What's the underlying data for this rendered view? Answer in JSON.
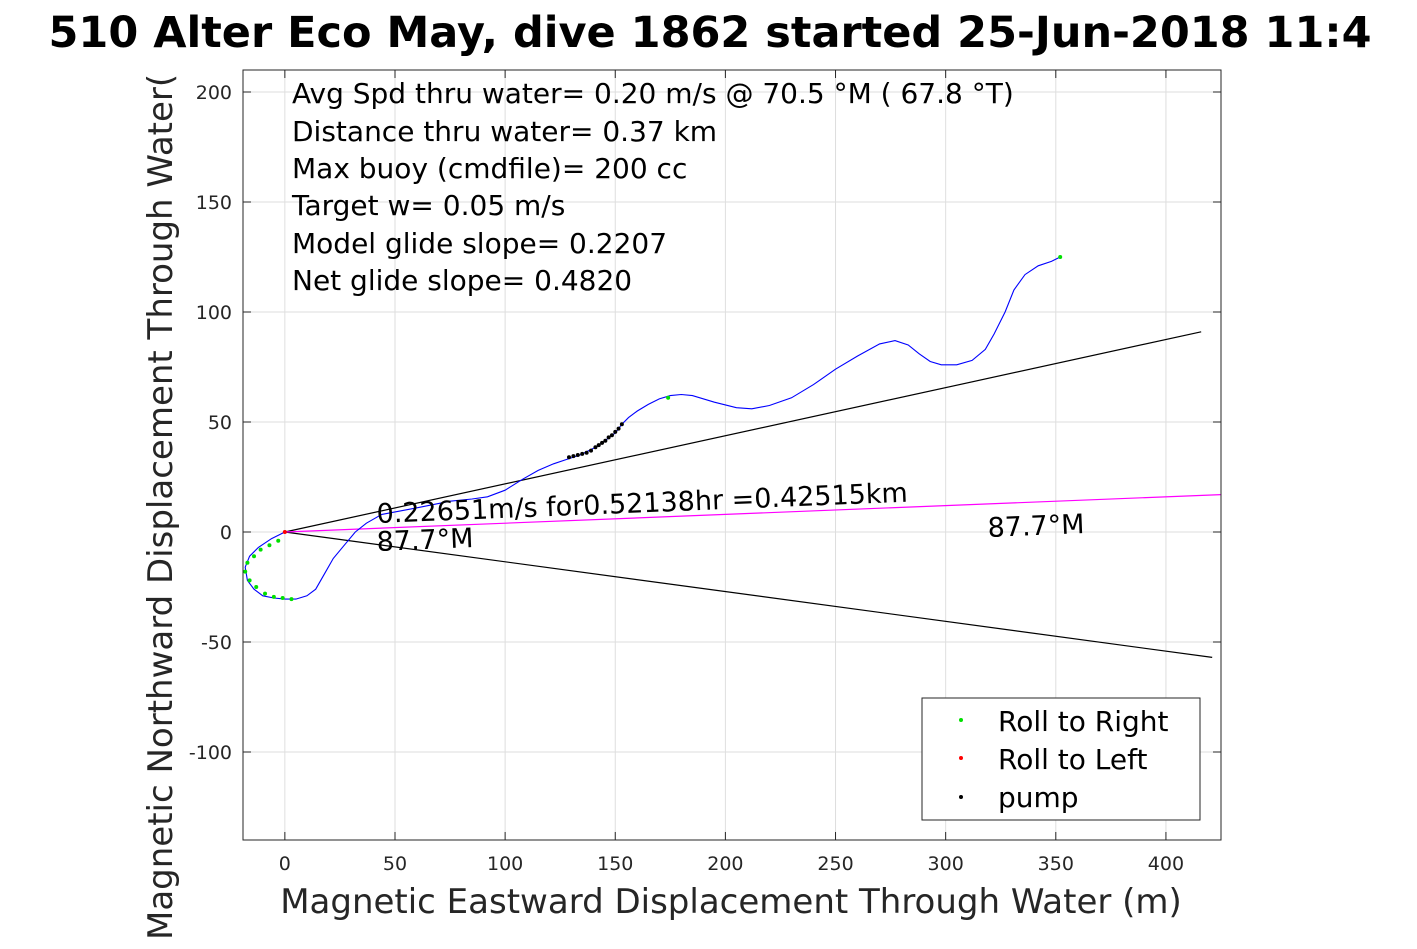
{
  "chart_data": {
    "type": "line",
    "title": "510 Alter Eco May, dive 1862 started 25-Jun-2018 11:4",
    "xlabel": "Magnetic Eastward Displacement Through Water (m)",
    "ylabel": "Magnetic Northward Displacement Through Water(",
    "xlim": [
      -19,
      425
    ],
    "ylim": [
      -140,
      210
    ],
    "grid": true,
    "x_ticks": [
      0,
      50,
      100,
      150,
      200,
      250,
      300,
      350,
      400
    ],
    "y_ticks": [
      -100,
      -50,
      0,
      50,
      100,
      150,
      200
    ],
    "tick_labels_x": [
      "0",
      "50",
      "100",
      "150",
      "200",
      "250",
      "300",
      "350",
      "400"
    ],
    "tick_labels_y": [
      "-100",
      "-50",
      "0",
      "50",
      "100",
      "150",
      "200"
    ],
    "stats_lines": [
      "Avg Spd thru water=  0.20 m/s @  70.5 °M ( 67.8 °T)",
      "Distance thru water=  0.37 km",
      "Max buoy (cmdfile)= 200 cc",
      "Target w= 0.05 m/s",
      "Model glide slope= 0.2207",
      "Net glide slope= 0.4820"
    ],
    "current_label": "0.22651m/s for0.52138hr =0.42515km",
    "heading_label_near": "87.7°M",
    "heading_label_far": "87.7°M",
    "legend_position": "bottom-right",
    "series": [
      {
        "name": "track",
        "color": "#0000ff",
        "points": [
          [
            0,
            0
          ],
          [
            -6,
            -3
          ],
          [
            -12,
            -7
          ],
          [
            -16,
            -11
          ],
          [
            -18,
            -16
          ],
          [
            -17,
            -22
          ],
          [
            -14,
            -26
          ],
          [
            -10,
            -29
          ],
          [
            -5,
            -30
          ],
          [
            0,
            -30.5
          ],
          [
            5,
            -30.5
          ],
          [
            10,
            -29
          ],
          [
            14,
            -26
          ],
          [
            18,
            -19
          ],
          [
            22,
            -12
          ],
          [
            27,
            -6
          ],
          [
            32,
            0
          ],
          [
            37,
            4
          ],
          [
            44,
            8
          ],
          [
            60,
            11
          ],
          [
            75,
            14
          ],
          [
            85,
            15
          ],
          [
            92,
            16
          ],
          [
            100,
            19
          ],
          [
            108,
            24
          ],
          [
            115,
            28
          ],
          [
            122,
            31
          ],
          [
            128,
            33
          ],
          [
            134,
            35
          ],
          [
            138,
            37
          ],
          [
            142,
            39
          ],
          [
            146,
            42
          ],
          [
            150,
            45
          ],
          [
            153,
            49
          ],
          [
            156,
            52
          ],
          [
            160,
            55
          ],
          [
            165,
            58
          ],
          [
            170,
            60.5
          ],
          [
            175,
            62
          ],
          [
            180,
            62.5
          ],
          [
            185,
            62
          ],
          [
            195,
            59
          ],
          [
            205,
            56.5
          ],
          [
            212,
            56
          ],
          [
            220,
            57.5
          ],
          [
            230,
            61
          ],
          [
            240,
            67
          ],
          [
            250,
            74
          ],
          [
            260,
            80
          ],
          [
            270,
            85.5
          ],
          [
            277,
            87
          ],
          [
            283,
            85
          ],
          [
            288,
            81
          ],
          [
            293,
            77.5
          ],
          [
            298,
            76
          ],
          [
            305,
            76
          ],
          [
            312,
            78
          ],
          [
            318,
            83
          ],
          [
            322,
            90
          ],
          [
            327,
            100
          ],
          [
            331,
            110
          ],
          [
            336,
            117
          ],
          [
            342,
            121
          ],
          [
            348,
            123
          ],
          [
            352,
            125
          ]
        ]
      },
      {
        "name": "Roll to Right",
        "color": "#00e000",
        "points": [
          [
            -3,
            -4
          ],
          [
            -7,
            -6
          ],
          [
            -11,
            -8
          ],
          [
            -14,
            -11
          ],
          [
            -17,
            -14
          ],
          [
            -18,
            -18
          ],
          [
            -16,
            -22
          ],
          [
            -13,
            -25
          ],
          [
            -9,
            -28
          ],
          [
            -5,
            -29.5
          ],
          [
            -1,
            -30
          ],
          [
            3,
            -30.5
          ],
          [
            174,
            61
          ],
          [
            352,
            125
          ]
        ]
      },
      {
        "name": "Roll to Left",
        "color": "#ff0000",
        "points": [
          [
            0,
            0
          ]
        ]
      },
      {
        "name": "pump",
        "color": "#000000",
        "points": [
          [
            129,
            34
          ],
          [
            131,
            34.5
          ],
          [
            133,
            35
          ],
          [
            135,
            35.5
          ],
          [
            137,
            36
          ],
          [
            139,
            37
          ],
          [
            141,
            38.5
          ],
          [
            142.5,
            39.5
          ],
          [
            144,
            40.5
          ],
          [
            145.5,
            41.5
          ],
          [
            147,
            43
          ],
          [
            148.5,
            44
          ],
          [
            150,
            45.5
          ],
          [
            151.5,
            47
          ],
          [
            153,
            49
          ]
        ]
      }
    ],
    "reference_lines": [
      {
        "name": "model-glide-upper",
        "color": "#000000",
        "from": [
          0,
          0
        ],
        "to": [
          416,
          91
        ]
      },
      {
        "name": "model-glide-lower",
        "color": "#000000",
        "from": [
          0,
          0
        ],
        "to": [
          421,
          -57
        ]
      },
      {
        "name": "current-vector",
        "color": "#ff00ff",
        "from": [
          0,
          0
        ],
        "to": [
          425,
          17
        ]
      }
    ]
  }
}
